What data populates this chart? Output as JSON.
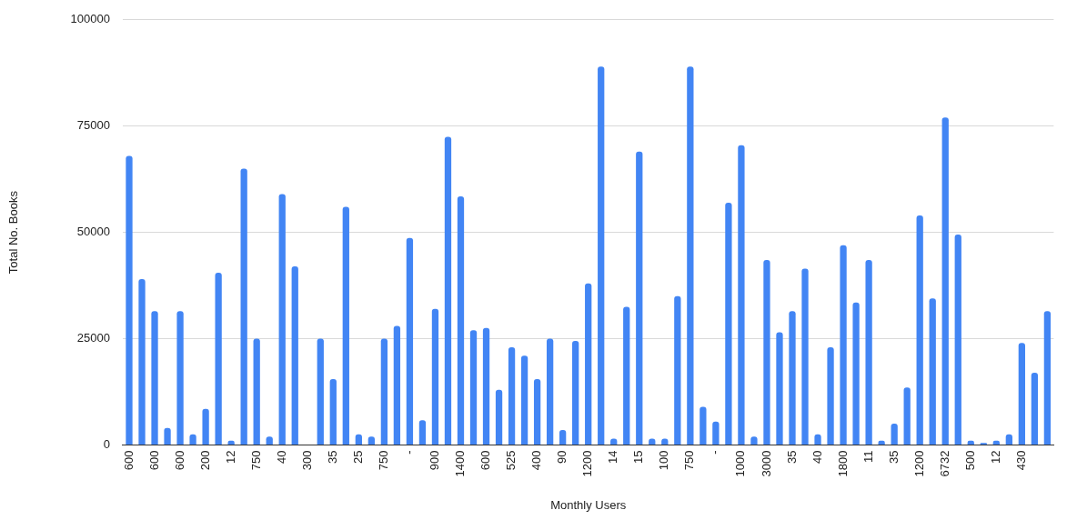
{
  "chart_data": {
    "type": "bar",
    "xlabel": "Monthly Users",
    "ylabel": "Total No. Books",
    "categories": [
      "600",
      null,
      "600",
      null,
      "600",
      null,
      "200",
      null,
      "12",
      null,
      "750",
      null,
      "40",
      null,
      "300",
      null,
      "35",
      null,
      "25",
      null,
      "750",
      null,
      "-",
      null,
      "900",
      null,
      "1400",
      null,
      "600",
      null,
      "525",
      null,
      "400",
      null,
      "90",
      null,
      "1200",
      null,
      "14",
      null,
      "15",
      null,
      "100",
      null,
      "750",
      null,
      "-",
      null,
      "1000",
      null,
      "3000",
      null,
      "35",
      null,
      "40",
      null,
      "1800",
      null,
      "11",
      null,
      "35",
      null,
      "1200",
      null,
      "6732",
      null,
      "500",
      null,
      "12",
      null,
      "430",
      null,
      null
    ],
    "values": [
      68000,
      39000,
      31500,
      4000,
      31500,
      2500,
      8500,
      40500,
      1000,
      65000,
      25000,
      2000,
      59000,
      42000,
      0,
      25000,
      15500,
      56000,
      2500,
      2000,
      25000,
      28000,
      48700,
      5800,
      32000,
      72500,
      58500,
      27000,
      27500,
      13000,
      23000,
      21000,
      15500,
      25000,
      3500,
      24500,
      38000,
      89000,
      1500,
      32500,
      69000,
      1500,
      1500,
      35000,
      89000,
      9000,
      5500,
      57000,
      70500,
      2000,
      43500,
      26500,
      31500,
      41500,
      2500,
      23000,
      47000,
      33500,
      43500,
      1000,
      5000,
      13500,
      54000,
      34500,
      77000,
      49500,
      1000,
      500,
      1000,
      2500,
      24000,
      17000,
      31500
    ],
    "color": "#4285f4",
    "ylim": [
      0,
      100000
    ],
    "yticks": [
      0,
      25000,
      50000,
      75000,
      100000
    ],
    "grid": "y",
    "legend": false
  }
}
